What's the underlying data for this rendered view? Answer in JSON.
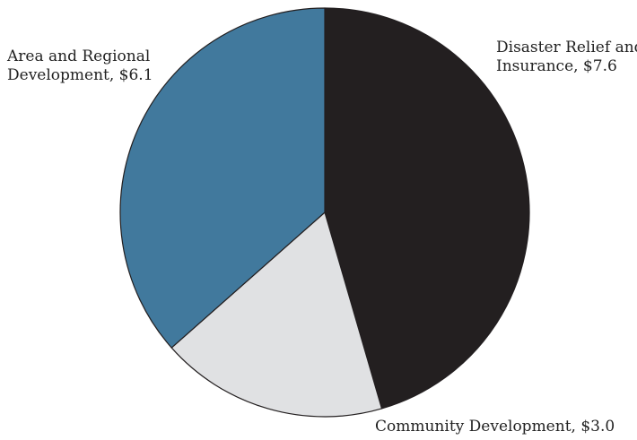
{
  "chart_data": {
    "type": "pie",
    "title": "",
    "slices": [
      {
        "label_lines": [
          "Disaster Relief and",
          "Insurance, $7.6"
        ],
        "value": 7.6,
        "color": "#231f20"
      },
      {
        "label_lines": [
          "Community Development, $3.0"
        ],
        "value": 3.0,
        "color": "#e0e1e3"
      },
      {
        "label_lines": [
          "Area and Regional",
          "Development, $6.1"
        ],
        "value": 6.1,
        "color": "#41799d"
      }
    ]
  }
}
